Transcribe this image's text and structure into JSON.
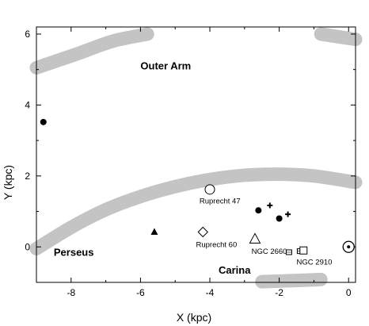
{
  "chart_data": {
    "type": "scatter",
    "xlabel": "X (kpc)",
    "ylabel": "Y (kpc)",
    "xlim": [
      -9.0,
      0.2
    ],
    "ylim": [
      -1.0,
      6.2
    ],
    "x_ticks": [
      {
        "value": -8,
        "label": "-8"
      },
      {
        "value": -6,
        "label": "-6"
      },
      {
        "value": -4,
        "label": "-4"
      },
      {
        "value": -2,
        "label": "-2"
      },
      {
        "value": 0,
        "label": "0"
      }
    ],
    "y_ticks": [
      {
        "value": 0,
        "label": "0"
      },
      {
        "value": 2,
        "label": "2"
      },
      {
        "value": 4,
        "label": "4"
      },
      {
        "value": 6,
        "label": "6"
      }
    ],
    "grid": false,
    "spiral_arms": [
      {
        "label": "Outer Arm",
        "label_at": [
          -6.0,
          5.0
        ],
        "segments": [
          [
            [
              -9.0,
              5.05
            ],
            [
              -7.8,
              5.45
            ],
            [
              -6.8,
              5.8
            ],
            [
              -5.8,
              6.0
            ]
          ],
          [
            [
              -0.8,
              6.0
            ],
            [
              0.2,
              5.85
            ]
          ]
        ]
      },
      {
        "label": "Perseus",
        "label_at": [
          -8.5,
          -0.25
        ],
        "segments": [
          [
            [
              -9.0,
              -0.05
            ],
            [
              -8.0,
              0.55
            ],
            [
              -7.0,
              1.05
            ],
            [
              -6.0,
              1.42
            ],
            [
              -5.0,
              1.7
            ],
            [
              -4.0,
              1.9
            ],
            [
              -3.0,
              2.02
            ],
            [
              -2.0,
              2.05
            ],
            [
              -1.0,
              2.0
            ],
            [
              0.2,
              1.82
            ]
          ]
        ]
      },
      {
        "label": "Carina",
        "label_at": [
          -3.75,
          -0.75
        ],
        "segments": [
          [
            [
              -2.5,
              -0.98
            ],
            [
              -1.6,
              -0.95
            ],
            [
              -0.8,
              -0.92
            ]
          ]
        ]
      }
    ],
    "objects": [
      {
        "symbol": "filled-circle",
        "x": -8.8,
        "y": 3.52,
        "label": ""
      },
      {
        "symbol": "open-circle",
        "x": -4.0,
        "y": 1.62,
        "label": "Ruprecht 47",
        "label_at": [
          -4.3,
          1.22
        ]
      },
      {
        "symbol": "filled-circle",
        "x": -2.6,
        "y": 1.03,
        "label": ""
      },
      {
        "symbol": "plus",
        "x": -2.27,
        "y": 1.17,
        "label": ""
      },
      {
        "symbol": "plus",
        "x": -1.75,
        "y": 0.92,
        "label": ""
      },
      {
        "symbol": "filled-circle",
        "x": -2.0,
        "y": 0.8,
        "label": ""
      },
      {
        "symbol": "filled-triangle",
        "x": -5.6,
        "y": 0.42,
        "label": ""
      },
      {
        "symbol": "open-diamond",
        "x": -4.2,
        "y": 0.42,
        "label": "Ruprecht 60",
        "label_at": [
          -4.4,
          0.0
        ]
      },
      {
        "symbol": "open-triangle",
        "x": -2.7,
        "y": 0.22,
        "label": "NGC 2660",
        "label_at": [
          -2.8,
          -0.2
        ]
      },
      {
        "symbol": "small-square",
        "x": -1.72,
        "y": -0.15,
        "label": ""
      },
      {
        "symbol": "small-square",
        "x": -1.4,
        "y": -0.12,
        "label": ""
      },
      {
        "symbol": "open-square",
        "x": -1.3,
        "y": -0.1,
        "label": "NGC 2910",
        "label_at": [
          -1.5,
          -0.5
        ]
      },
      {
        "symbol": "sun",
        "x": 0.0,
        "y": 0.0,
        "label": ""
      }
    ]
  }
}
